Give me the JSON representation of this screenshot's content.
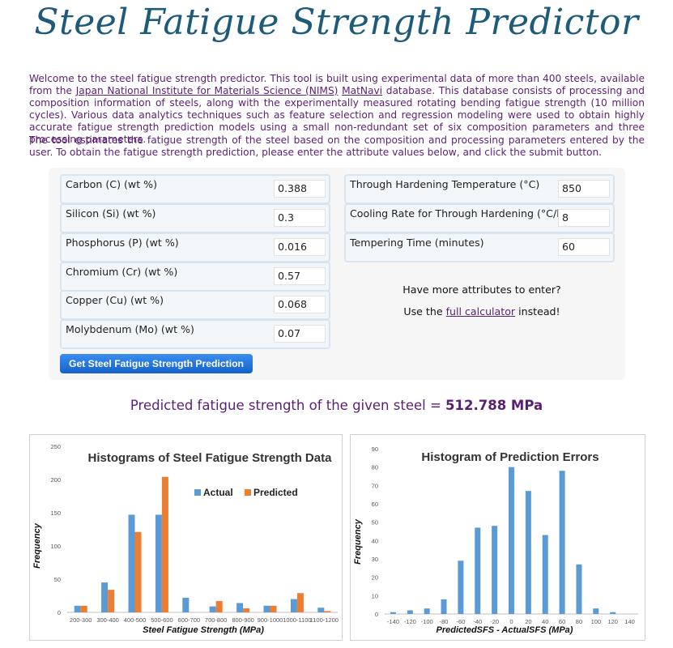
{
  "title": "Steel Fatigue Strength Predictor",
  "intro": {
    "p1_a": "Welcome to the steel fatigue strength predictor. This tool is built using experimental data of more than 400 steels, available from the ",
    "link_nims": "Japan National Institute for Materials Science (NIMS)",
    "p1_b": " ",
    "link_matnavi": "MatNavi",
    "p1_c": " database. This database consists of processing and composition information of steels, along with the experimentally measured rotating bending fatigue strength (10 million cycles). Various data analytics techniques such as feature selection and regression modeling were used to obtain highly accurate fatigue strength prediction models using a small non-redundant set of six composition parameters and three processing parameters.",
    "p2": "The tool estimates the fatigue strength of the steel based on the composition and processing parameters entered by the user. To obtain the fatigue strength prediction, please enter the attribute values below, and click the submit button."
  },
  "form": {
    "left": [
      {
        "label": "Carbon (C) (wt %)",
        "value": "0.388"
      },
      {
        "label": "Silicon (Si) (wt %)",
        "value": "0.3"
      },
      {
        "label": "Phosphorus (P) (wt %)",
        "value": "0.016"
      },
      {
        "label": "Chromium (Cr) (wt %)",
        "value": "0.57"
      },
      {
        "label": "Copper (Cu) (wt %)",
        "value": "0.068"
      },
      {
        "label": "Molybdenum (Mo) (wt %)",
        "value": "0.07"
      }
    ],
    "right": [
      {
        "label": "Through Hardening Temperature (°C)",
        "value": "850"
      },
      {
        "label": "Cooling Rate for Through Hardening (°C/hr)",
        "value": "8"
      },
      {
        "label": "Tempering Time (minutes)",
        "value": "60"
      }
    ],
    "more_q": "Have more attributes to enter?",
    "more_a": "Use the ",
    "more_link": "full calculator",
    "more_b": " instead!",
    "submit": "Get Steel Fatigue Strength Prediction"
  },
  "result": {
    "text": "Predicted fatigue strength of the given steel = ",
    "value": "512.788 MPa"
  },
  "colors": {
    "actual": "#5b9bd5",
    "predicted": "#ed7d31",
    "title": "#1e5b7a",
    "text": "#5b1f72"
  },
  "chart_data": [
    {
      "type": "bar",
      "title": "Histograms of Steel Fatigue Strength Data",
      "xlabel": "Steel Fatigue Strength (MPa)",
      "ylabel": "Frequency",
      "ylim": [
        0,
        250
      ],
      "yticks": [
        0,
        50,
        100,
        150,
        200,
        250
      ],
      "legend": "top-right",
      "categories": [
        "200-300",
        "300-400",
        "400-500",
        "500-600",
        "600-700",
        "700-800",
        "800-900",
        "900-1000",
        "1000-1100",
        "1100-1200"
      ],
      "series": [
        {
          "name": "Actual",
          "values": [
            10,
            45,
            147,
            147,
            22,
            9,
            14,
            10,
            20,
            7
          ]
        },
        {
          "name": "Predicted",
          "values": [
            10,
            34,
            121,
            204,
            0,
            17,
            6,
            10,
            29,
            2
          ]
        }
      ]
    },
    {
      "type": "bar",
      "title": "Histogram of Prediction Errors",
      "xlabel": "PredictedSFS - ActualSFS (MPa)",
      "ylabel": "Frequency",
      "ylim": [
        0,
        90
      ],
      "yticks": [
        0,
        10,
        20,
        30,
        40,
        50,
        60,
        70,
        80,
        90
      ],
      "categories": [
        "-140",
        "-120",
        "-100",
        "-80",
        "-60",
        "-40",
        "-20",
        "0",
        "20",
        "40",
        "60",
        "80",
        "100",
        "120",
        "140"
      ],
      "series": [
        {
          "values": [
            1,
            2,
            3,
            8,
            29,
            47,
            48,
            80,
            67,
            43,
            78,
            27,
            3,
            1,
            0
          ]
        }
      ]
    }
  ]
}
